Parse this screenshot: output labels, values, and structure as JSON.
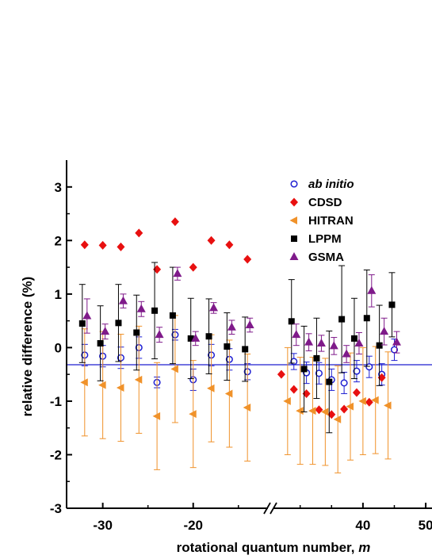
{
  "chart_data": {
    "type": "scatter",
    "xlabel": "rotational quantum number, ",
    "xlabel_var": "m",
    "ylabel": "relative difference (%)",
    "ylim": [
      -3,
      3.5
    ],
    "y_ticks": [
      -3,
      -2,
      -1,
      0,
      1,
      2,
      3
    ],
    "x_segments": [
      {
        "range": [
          -34,
          -12
        ],
        "ticks": [
          -30,
          -20
        ]
      },
      {
        "range": [
          26,
          51
        ],
        "ticks": [
          40,
          50
        ]
      }
    ],
    "x_tick_labels": [
      "-30",
      "-20",
      "40",
      "50"
    ],
    "axis_break": "x",
    "baseline_y": -0.32,
    "legend_position": "top-right",
    "colors": {
      "ab_initio": "#1f1fd1",
      "cdsd": "#e81010",
      "hitran": "#f0922a",
      "lppm": "#000000",
      "gsma": "#7f1a8a",
      "baseline": "#1f1fd1"
    },
    "series": [
      {
        "key": "ab_initio",
        "name": "ab initio",
        "italic": true,
        "marker": "open-circle",
        "points": [
          {
            "x": -32,
            "y": -0.14,
            "err": 0.2
          },
          {
            "x": -30,
            "y": -0.16,
            "err": 0.2
          },
          {
            "x": -28,
            "y": -0.19,
            "err": 0.2
          },
          {
            "x": -26,
            "y": 0.0,
            "err": 0.2
          },
          {
            "x": -24,
            "y": -0.65,
            "err": 0.1
          },
          {
            "x": -22,
            "y": 0.24,
            "err": 0.1
          },
          {
            "x": -20,
            "y": -0.6,
            "err": 0.2
          },
          {
            "x": -18,
            "y": -0.14,
            "err": 0.2
          },
          {
            "x": -16,
            "y": -0.22,
            "err": 0.2
          },
          {
            "x": -14,
            "y": -0.45,
            "err": 0.15
          },
          {
            "x": 29,
            "y": -0.26,
            "err": 0.15
          },
          {
            "x": 31,
            "y": -0.47,
            "err": 0.2
          },
          {
            "x": 33,
            "y": -0.48,
            "err": 0.2
          },
          {
            "x": 35,
            "y": -0.6,
            "err": 0.2
          },
          {
            "x": 37,
            "y": -0.66,
            "err": 0.2
          },
          {
            "x": 39,
            "y": -0.44,
            "err": 0.2
          },
          {
            "x": 41,
            "y": -0.36,
            "err": 0.2
          },
          {
            "x": 43,
            "y": -0.5,
            "err": 0.2
          },
          {
            "x": 45,
            "y": -0.04,
            "err": 0.2
          }
        ]
      },
      {
        "key": "cdsd",
        "name": "CDSD",
        "marker": "diamond",
        "points": [
          {
            "x": -32,
            "y": 1.92
          },
          {
            "x": -30,
            "y": 1.91
          },
          {
            "x": -28,
            "y": 1.88
          },
          {
            "x": -26,
            "y": 2.14
          },
          {
            "x": -24,
            "y": 1.46
          },
          {
            "x": -22,
            "y": 2.35
          },
          {
            "x": -20,
            "y": 1.5
          },
          {
            "x": -18,
            "y": 2.0
          },
          {
            "x": -16,
            "y": 1.92
          },
          {
            "x": -14,
            "y": 1.65
          },
          {
            "x": 27,
            "y": -0.5
          },
          {
            "x": 29,
            "y": -0.78
          },
          {
            "x": 31,
            "y": -0.86
          },
          {
            "x": 33,
            "y": -1.16
          },
          {
            "x": 35,
            "y": -1.25
          },
          {
            "x": 37,
            "y": -1.15
          },
          {
            "x": 39,
            "y": -0.84
          },
          {
            "x": 41,
            "y": -1.02
          },
          {
            "x": 43,
            "y": -0.56
          }
        ]
      },
      {
        "key": "hitran",
        "name": "HITRAN",
        "marker": "left-triangle",
        "points": [
          {
            "x": -32,
            "y": -0.65,
            "err": 1.0
          },
          {
            "x": -30,
            "y": -0.7,
            "err": 1.0
          },
          {
            "x": -28,
            "y": -0.75,
            "err": 1.0
          },
          {
            "x": -26,
            "y": -0.6,
            "err": 1.0
          },
          {
            "x": -24,
            "y": -1.28,
            "err": 1.0
          },
          {
            "x": -22,
            "y": -0.4,
            "err": 1.0
          },
          {
            "x": -20,
            "y": -1.24,
            "err": 1.0
          },
          {
            "x": -18,
            "y": -0.76,
            "err": 1.0
          },
          {
            "x": -16,
            "y": -0.86,
            "err": 1.0
          },
          {
            "x": -14,
            "y": -1.12,
            "err": 1.0
          },
          {
            "x": 28,
            "y": -1.0,
            "err": 1.0
          },
          {
            "x": 30,
            "y": -1.18,
            "err": 1.0
          },
          {
            "x": 32,
            "y": -1.18,
            "err": 1.0
          },
          {
            "x": 34,
            "y": -1.2,
            "err": 1.0
          },
          {
            "x": 36,
            "y": -1.34,
            "err": 1.0
          },
          {
            "x": 38,
            "y": -1.1,
            "err": 1.0
          },
          {
            "x": 40,
            "y": -1.0,
            "err": 1.0
          },
          {
            "x": 42,
            "y": -0.98,
            "err": 1.0
          },
          {
            "x": 44,
            "y": -1.08,
            "err": 1.0
          }
        ]
      },
      {
        "key": "lppm",
        "name": "LPPM",
        "marker": "square",
        "points": [
          {
            "x": -32,
            "y": 0.45,
            "err": 0.73
          },
          {
            "x": -30,
            "y": 0.08,
            "err": 0.7
          },
          {
            "x": -28,
            "y": 0.46,
            "err": 0.72
          },
          {
            "x": -26,
            "y": 0.28,
            "err": 0.7
          },
          {
            "x": -24,
            "y": 0.69,
            "err": 0.9
          },
          {
            "x": -22,
            "y": 0.6,
            "err": 0.9
          },
          {
            "x": -20,
            "y": 0.17,
            "err": 0.75
          },
          {
            "x": -18,
            "y": 0.21,
            "err": 0.7
          },
          {
            "x": -16,
            "y": 0.02,
            "err": 0.63
          },
          {
            "x": -14,
            "y": -0.03,
            "err": 0.6
          },
          {
            "x": 29,
            "y": 0.49,
            "err": 0.78
          },
          {
            "x": 31,
            "y": -0.4,
            "err": 0.8
          },
          {
            "x": 33,
            "y": -0.2,
            "err": 0.75
          },
          {
            "x": 35,
            "y": -0.64,
            "err": 0.95
          },
          {
            "x": 37,
            "y": 0.53,
            "err": 1.0
          },
          {
            "x": 39,
            "y": 0.17,
            "err": 0.75
          },
          {
            "x": 41,
            "y": 0.55,
            "err": 0.9
          },
          {
            "x": 43,
            "y": 0.04,
            "err": 0.75
          },
          {
            "x": 45,
            "y": 0.8,
            "err": 0.6
          }
        ]
      },
      {
        "key": "gsma",
        "name": "GSMA",
        "marker": "triangle-up",
        "points": [
          {
            "x": -32,
            "y": 0.59,
            "err": 0.32
          },
          {
            "x": -30,
            "y": 0.3,
            "err": 0.14
          },
          {
            "x": -28,
            "y": 0.87,
            "err": 0.13
          },
          {
            "x": -26,
            "y": 0.72,
            "err": 0.14
          },
          {
            "x": -24,
            "y": 0.24,
            "err": 0.14
          },
          {
            "x": -22,
            "y": 1.38,
            "err": 0.12
          },
          {
            "x": -20,
            "y": 0.17,
            "err": 0.13
          },
          {
            "x": -18,
            "y": 0.74,
            "err": 0.1
          },
          {
            "x": -16,
            "y": 0.38,
            "err": 0.13
          },
          {
            "x": -14,
            "y": 0.42,
            "err": 0.13
          },
          {
            "x": 29,
            "y": 0.24,
            "err": 0.2
          },
          {
            "x": 31,
            "y": 0.1,
            "err": 0.16
          },
          {
            "x": 33,
            "y": 0.08,
            "err": 0.15
          },
          {
            "x": 35,
            "y": 0.03,
            "err": 0.16
          },
          {
            "x": 37,
            "y": -0.12,
            "err": 0.16
          },
          {
            "x": 39,
            "y": 0.08,
            "err": 0.2
          },
          {
            "x": 41,
            "y": 1.06,
            "err": 0.3
          },
          {
            "x": 43,
            "y": 0.3,
            "err": 0.25
          },
          {
            "x": 45,
            "y": 0.1,
            "err": 0.2
          }
        ]
      }
    ]
  }
}
